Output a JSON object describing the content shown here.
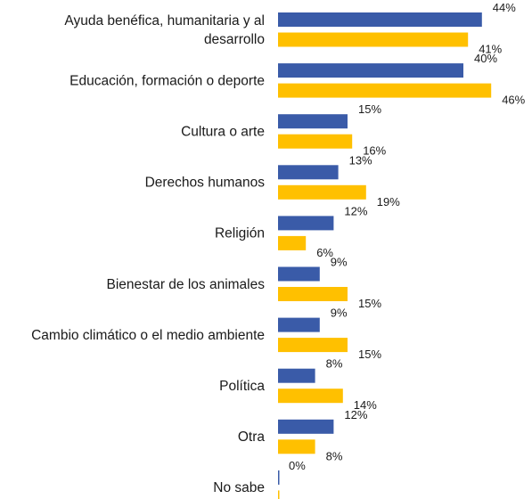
{
  "chart_data": {
    "type": "bar",
    "orientation": "horizontal",
    "categories": [
      "Ayuda benéfica, humanitaria y al desarrollo",
      "Educación, formación o deporte",
      "Cultura o arte",
      "Derechos humanos",
      "Religión",
      "Bienestar de los animales",
      "Cambio climático o el medio ambiente",
      "Política",
      "Otra",
      "No sabe"
    ],
    "category_lines": [
      [
        "Ayuda benéfica, humanitaria y al",
        "desarrollo"
      ],
      [
        "Educación, formación o deporte"
      ],
      [
        "Cultura o arte"
      ],
      [
        "Derechos humanos"
      ],
      [
        "Religión"
      ],
      [
        "Bienestar de los animales"
      ],
      [
        "Cambio climático o el medio ambiente"
      ],
      [
        "Política"
      ],
      [
        "Otra"
      ],
      [
        "No sabe"
      ]
    ],
    "series": [
      {
        "values": [
          44,
          40,
          15,
          13,
          12,
          9,
          9,
          8,
          12,
          0
        ],
        "color": "#3a5ba8"
      },
      {
        "values": [
          41,
          46,
          16,
          19,
          6,
          15,
          15,
          14,
          8,
          0
        ],
        "color": "#ffc000"
      }
    ],
    "value_suffix": "%",
    "xlim": [
      0,
      50
    ],
    "grid": false,
    "legend": "none"
  }
}
